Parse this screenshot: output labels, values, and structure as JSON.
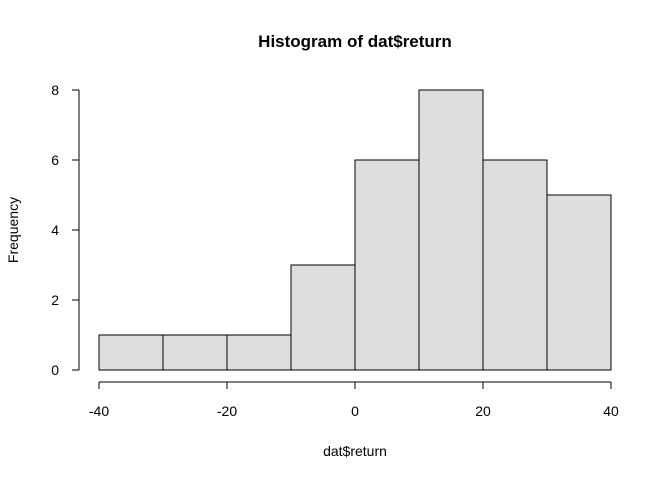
{
  "chart_data": {
    "type": "bar",
    "title": "Histogram of dat$return",
    "xlabel": "dat$return",
    "ylabel": "Frequency",
    "bins": [
      {
        "start": -40,
        "end": -30,
        "count": 1
      },
      {
        "start": -30,
        "end": -20,
        "count": 1
      },
      {
        "start": -20,
        "end": -10,
        "count": 1
      },
      {
        "start": -10,
        "end": 0,
        "count": 3
      },
      {
        "start": 0,
        "end": 10,
        "count": 6
      },
      {
        "start": 10,
        "end": 20,
        "count": 8
      },
      {
        "start": 20,
        "end": 30,
        "count": 6
      },
      {
        "start": 30,
        "end": 40,
        "count": 5
      }
    ],
    "xlim": [
      -40,
      40
    ],
    "ylim": [
      0,
      8
    ],
    "xticks": [
      -40,
      -20,
      0,
      20,
      40
    ],
    "yticks": [
      0,
      2,
      4,
      6,
      8
    ],
    "grid": false,
    "colors": {
      "bar_fill": "#dedede",
      "bar_stroke": "#000000"
    }
  }
}
